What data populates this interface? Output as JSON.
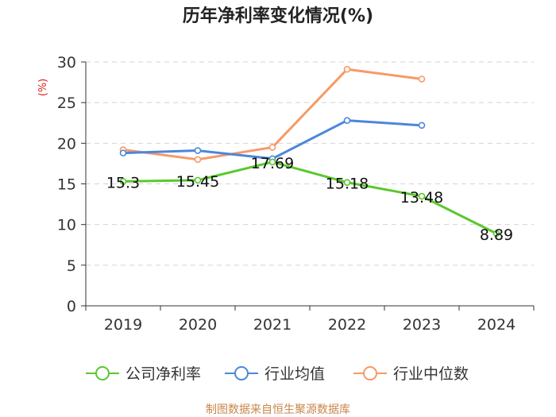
{
  "chart_data": {
    "type": "line",
    "title": "历年净利率变化情况(%)",
    "ylabel": "(%)",
    "xlabel": "",
    "categories": [
      "2019",
      "2020",
      "2021",
      "2022",
      "2023",
      "2024"
    ],
    "ylim": [
      0,
      30
    ],
    "yticks": [
      0,
      5,
      10,
      15,
      20,
      25,
      30
    ],
    "grid": "horizontal dashed",
    "legend_position": "bottom",
    "series": [
      {
        "name": "公司净利率",
        "color": "#5ac82e",
        "values": [
          15.3,
          15.45,
          17.69,
          15.18,
          13.48,
          8.89
        ],
        "labels": [
          "15.3",
          "15.45",
          "17.69",
          "15.18",
          "13.48",
          "8.89"
        ]
      },
      {
        "name": "行业均值",
        "color": "#4c86db",
        "values": [
          18.8,
          19.1,
          18.1,
          22.8,
          22.2,
          null
        ]
      },
      {
        "name": "行业中位数",
        "color": "#f69a66",
        "values": [
          19.2,
          18.0,
          19.5,
          29.1,
          27.9,
          null
        ]
      }
    ],
    "source": "制图数据来自恒生聚源数据库"
  }
}
